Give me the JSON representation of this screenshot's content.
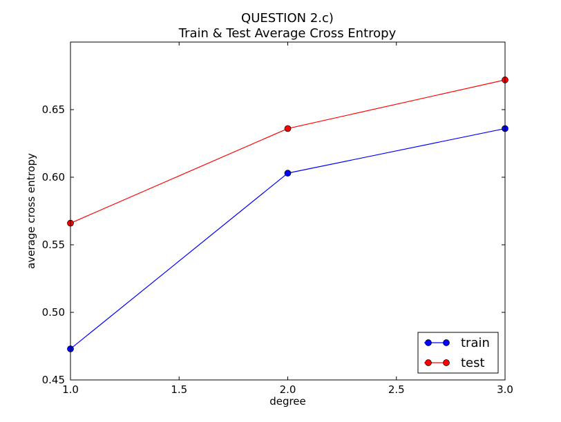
{
  "chart_data": {
    "type": "line",
    "title": "QUESTION 2.c)",
    "subtitle": "Train & Test Average Cross Entropy",
    "xlabel": "degree",
    "ylabel": "average cross entropy",
    "xlim": [
      1.0,
      3.0
    ],
    "ylim": [
      0.45,
      0.7
    ],
    "x_ticks": [
      1.0,
      1.5,
      2.0,
      2.5,
      3.0
    ],
    "x_tick_labels": [
      "1.0",
      "1.5",
      "2.0",
      "2.5",
      "3.0"
    ],
    "y_ticks": [
      0.45,
      0.5,
      0.55,
      0.6,
      0.65
    ],
    "y_tick_labels": [
      "0.45",
      "0.50",
      "0.55",
      "0.60",
      "0.65"
    ],
    "x": [
      1.0,
      2.0,
      3.0
    ],
    "grid": false,
    "legend_position": "bottom-right",
    "series": [
      {
        "name": "train",
        "color": "#0000ff",
        "values": [
          0.473,
          0.603,
          0.636
        ]
      },
      {
        "name": "test",
        "color": "#ff0000",
        "values": [
          0.566,
          0.636,
          0.672
        ]
      }
    ]
  }
}
